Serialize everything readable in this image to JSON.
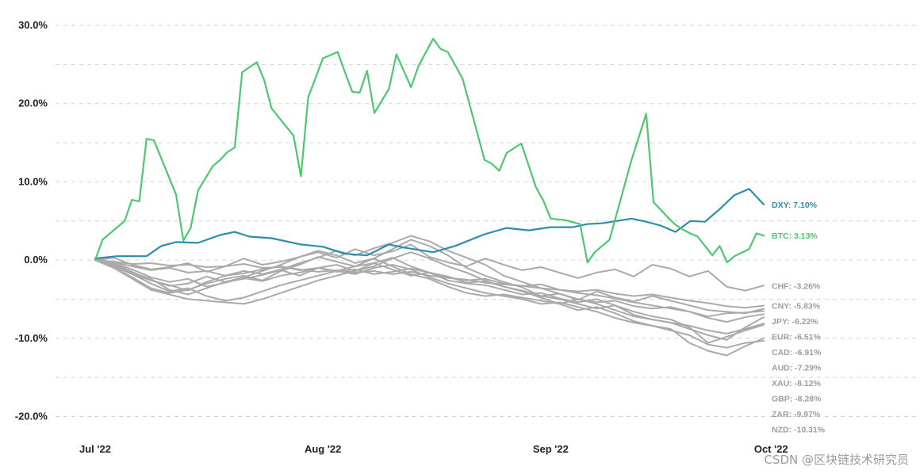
{
  "watermark": "CSDN @区块链技术研究员",
  "colors": {
    "dxy": "#2b8fa8",
    "btc": "#4cc86e",
    "fx": "#aaaaaa",
    "grid": "#d4d4d4"
  },
  "chart_data": {
    "type": "line",
    "title": "",
    "xlabel": "",
    "ylabel": "",
    "ylim": [
      -22,
      30
    ],
    "grid": true,
    "x_start": "2022-07-01",
    "x_end": "2022-09-30",
    "x_ticks": [
      {
        "label": "Jul '22",
        "date": "2022-07-01"
      },
      {
        "label": "Aug '22",
        "date": "2022-08-01"
      },
      {
        "label": "Sep '22",
        "date": "2022-09-01"
      },
      {
        "label": "Oct '22",
        "date": "2022-10-01"
      }
    ],
    "y_ticks": [
      {
        "label": "30.0%",
        "value": 30
      },
      {
        "label": "20.0%",
        "value": 20
      },
      {
        "label": "10.0%",
        "value": 10
      },
      {
        "label": "0.0%",
        "value": 0
      },
      {
        "label": "-10.0%",
        "value": -10
      },
      {
        "label": "-20.0%",
        "value": -20
      }
    ],
    "series": [
      {
        "name": "DXY",
        "end_label": "DXY: 7.10%",
        "color": "#2b8fa8",
        "highlight": true,
        "x": [
          "2022-07-01",
          "2022-07-04",
          "2022-07-08",
          "2022-07-10",
          "2022-07-12",
          "2022-07-15",
          "2022-07-18",
          "2022-07-20",
          "2022-07-22",
          "2022-07-25",
          "2022-07-29",
          "2022-08-01",
          "2022-08-04",
          "2022-08-07",
          "2022-08-10",
          "2022-08-12",
          "2022-08-16",
          "2022-08-19",
          "2022-08-23",
          "2022-08-26",
          "2022-08-29",
          "2022-09-01",
          "2022-09-04",
          "2022-09-06",
          "2022-09-08",
          "2022-09-12",
          "2022-09-14",
          "2022-09-16",
          "2022-09-18",
          "2022-09-20",
          "2022-09-22",
          "2022-09-24",
          "2022-09-26",
          "2022-09-28",
          "2022-09-30"
        ],
        "values": [
          0.2,
          0.5,
          0.5,
          1.8,
          2.3,
          2.2,
          3.2,
          3.6,
          3.0,
          2.8,
          2.0,
          1.7,
          0.8,
          0.6,
          2.0,
          1.6,
          1.0,
          1.8,
          3.3,
          4.1,
          3.8,
          4.2,
          4.2,
          4.6,
          4.7,
          5.3,
          4.9,
          4.4,
          3.6,
          5.0,
          4.9,
          6.5,
          8.3,
          9.1,
          7.1
        ]
      },
      {
        "name": "BTC",
        "end_label": "BTC: 3.13%",
        "color": "#4cc86e",
        "highlight": true,
        "x": [
          "2022-07-01",
          "2022-07-02",
          "2022-07-05",
          "2022-07-06",
          "2022-07-07",
          "2022-07-08",
          "2022-07-09",
          "2022-07-12",
          "2022-07-13",
          "2022-07-14",
          "2022-07-15",
          "2022-07-17",
          "2022-07-18",
          "2022-07-19",
          "2022-07-20",
          "2022-07-21",
          "2022-07-23",
          "2022-07-24",
          "2022-07-25",
          "2022-07-28",
          "2022-07-29",
          "2022-07-30",
          "2022-08-01",
          "2022-08-03",
          "2022-08-04",
          "2022-08-05",
          "2022-08-06",
          "2022-08-07",
          "2022-08-08",
          "2022-08-10",
          "2022-08-11",
          "2022-08-13",
          "2022-08-14",
          "2022-08-16",
          "2022-08-17",
          "2022-08-18",
          "2022-08-20",
          "2022-08-23",
          "2022-08-24",
          "2022-08-25",
          "2022-08-26",
          "2022-08-28",
          "2022-08-30",
          "2022-08-31",
          "2022-09-01",
          "2022-09-03",
          "2022-09-05",
          "2022-09-06",
          "2022-09-07",
          "2022-09-09",
          "2022-09-12",
          "2022-09-14",
          "2022-09-15",
          "2022-09-17",
          "2022-09-18",
          "2022-09-19",
          "2022-09-20",
          "2022-09-21",
          "2022-09-23",
          "2022-09-24",
          "2022-09-25",
          "2022-09-26",
          "2022-09-28",
          "2022-09-29",
          "2022-09-30"
        ],
        "values": [
          0,
          2.6,
          5.0,
          7.7,
          7.5,
          15.5,
          15.3,
          8.4,
          2.5,
          4.1,
          8.9,
          12.0,
          12.8,
          13.8,
          14.4,
          24.0,
          25.3,
          23.0,
          19.4,
          15.9,
          10.7,
          20.8,
          25.8,
          26.6,
          24.0,
          21.5,
          21.4,
          24.2,
          18.8,
          21.9,
          26.3,
          22.1,
          24.8,
          28.3,
          27.0,
          26.6,
          23.2,
          12.8,
          12.3,
          11.4,
          13.7,
          14.9,
          9.3,
          7.6,
          5.3,
          5.1,
          4.6,
          -0.3,
          1.0,
          2.6,
          12.8,
          18.7,
          7.4,
          5.4,
          4.5,
          3.9,
          3.4,
          3.0,
          0.6,
          1.8,
          -0.3,
          0.5,
          1.4,
          3.4,
          3.13
        ]
      },
      {
        "name": "CHF",
        "end_label": "CHF: -3.26%",
        "color": "#aaaaaa",
        "highlight": false,
        "values": [
          0,
          0.3,
          -0.6,
          -1.2,
          -0.9,
          -0.4,
          -1.5,
          -0.8,
          0.2,
          -0.6,
          -0.2,
          0.4,
          1.0,
          0.3,
          1.4,
          0.6,
          1.1,
          2.0,
          0.4,
          -0.3,
          -0.8,
          0.2,
          -0.6,
          -1.3,
          -0.9,
          -1.6,
          -2.3,
          -1.6,
          -1.2,
          -2.1,
          -0.6,
          -1.1,
          -2.1,
          -1.4,
          -3.4,
          -3.9,
          -3.26
        ]
      },
      {
        "name": "CNY",
        "end_label": "CNY: -5.83%",
        "color": "#aaaaaa",
        "highlight": false,
        "values": [
          0,
          -0.2,
          -0.5,
          -0.4,
          -0.7,
          -0.6,
          -0.9,
          -0.8,
          -0.5,
          -1.0,
          -0.9,
          -1.2,
          -1.5,
          -1.3,
          -1.6,
          -1.4,
          -1.8,
          -1.5,
          -2.0,
          -2.3,
          -2.5,
          -2.9,
          -3.1,
          -3.3,
          -3.6,
          -3.8,
          -4.0,
          -3.8,
          -4.3,
          -4.6,
          -4.4,
          -4.8,
          -5.2,
          -5.5,
          -5.9,
          -6.1,
          -5.83
        ]
      },
      {
        "name": "JPY",
        "end_label": "JPY: -6.22%",
        "color": "#aaaaaa",
        "highlight": false,
        "values": [
          0,
          -0.9,
          -1.8,
          -2.6,
          -3.2,
          -3.9,
          -2.8,
          -2.0,
          -1.4,
          -1.8,
          -1.2,
          -0.4,
          0.3,
          1.2,
          0.6,
          1.5,
          2.2,
          3.1,
          2.4,
          1.2,
          0.3,
          -0.6,
          -2.0,
          -2.8,
          -3.6,
          -4.3,
          -5.1,
          -4.0,
          -4.8,
          -5.3,
          -4.6,
          -5.2,
          -5.8,
          -6.4,
          -6.6,
          -6.8,
          -6.22
        ]
      },
      {
        "name": "EUR",
        "end_label": "EUR: -6.51%",
        "color": "#aaaaaa",
        "highlight": false,
        "values": [
          0,
          -0.5,
          -1.5,
          -2.6,
          -3.3,
          -3.0,
          -2.1,
          -2.8,
          -2.4,
          -1.9,
          -1.3,
          -2.0,
          -1.0,
          -0.6,
          -1.4,
          -0.4,
          0.3,
          -0.8,
          -1.6,
          -2.1,
          -2.9,
          -2.7,
          -3.4,
          -3.9,
          -4.6,
          -4.3,
          -5.0,
          -5.4,
          -5.2,
          -5.9,
          -6.2,
          -6.0,
          -6.6,
          -7.2,
          -6.8,
          -6.7,
          -6.51
        ]
      },
      {
        "name": "CAD",
        "end_label": "CAD: -6.91%",
        "color": "#aaaaaa",
        "highlight": false,
        "values": [
          0,
          -0.3,
          -0.8,
          -1.3,
          -1.0,
          -1.6,
          -1.4,
          -2.0,
          -1.7,
          -1.2,
          -0.8,
          -1.3,
          -1.0,
          -1.5,
          -1.2,
          -1.8,
          -1.5,
          -1.1,
          -1.6,
          -2.2,
          -2.6,
          -2.4,
          -3.0,
          -3.3,
          -3.1,
          -3.8,
          -4.2,
          -4.5,
          -4.9,
          -5.4,
          -5.8,
          -6.2,
          -6.6,
          -7.4,
          -7.9,
          -7.3,
          -6.91
        ]
      },
      {
        "name": "AUD",
        "end_label": "AUD: -7.29%",
        "color": "#aaaaaa",
        "highlight": false,
        "values": [
          0,
          -1.0,
          -2.2,
          -3.6,
          -4.2,
          -3.8,
          -3.0,
          -2.4,
          -2.0,
          -2.6,
          -1.4,
          -0.6,
          0.4,
          -0.2,
          -0.8,
          0.2,
          1.4,
          2.6,
          1.8,
          0.6,
          -1.0,
          -2.0,
          -2.8,
          -3.5,
          -4.6,
          -5.0,
          -5.6,
          -6.2,
          -5.8,
          -7.0,
          -7.6,
          -8.0,
          -8.8,
          -9.6,
          -10.2,
          -8.6,
          -7.29
        ]
      },
      {
        "name": "XAU",
        "end_label": "XAU: -8.12%",
        "color": "#aaaaaa",
        "highlight": false,
        "values": [
          0,
          -0.8,
          -1.6,
          -2.4,
          -3.8,
          -4.4,
          -3.6,
          -2.8,
          -2.2,
          -1.4,
          -0.6,
          0.4,
          1.2,
          0.6,
          -0.4,
          0.2,
          -0.8,
          -1.8,
          -2.4,
          -3.4,
          -4.2,
          -4.6,
          -4.4,
          -4.8,
          -5.2,
          -5.6,
          -5.0,
          -5.6,
          -6.4,
          -7.2,
          -7.6,
          -8.0,
          -8.4,
          -9.0,
          -9.4,
          -8.8,
          -8.12
        ]
      },
      {
        "name": "GBP",
        "end_label": "GBP: -8.28%",
        "color": "#aaaaaa",
        "highlight": false,
        "values": [
          0,
          -0.4,
          -1.2,
          -2.2,
          -2.8,
          -2.4,
          -3.4,
          -2.9,
          -2.3,
          -2.7,
          -2.0,
          -1.6,
          -1.0,
          -1.4,
          -0.8,
          -0.4,
          -1.2,
          -2.0,
          -1.6,
          -2.6,
          -3.0,
          -3.2,
          -3.8,
          -4.4,
          -4.2,
          -4.9,
          -5.4,
          -5.0,
          -5.8,
          -6.6,
          -7.2,
          -7.6,
          -8.6,
          -10.6,
          -9.8,
          -9.0,
          -8.28
        ]
      },
      {
        "name": "ZAR",
        "end_label": "ZAR: -9.97%",
        "color": "#aaaaaa",
        "highlight": false,
        "values": [
          0,
          -0.6,
          -1.8,
          -3.0,
          -4.0,
          -3.6,
          -4.6,
          -5.2,
          -4.8,
          -4.0,
          -3.2,
          -2.6,
          -2.0,
          -1.4,
          -1.8,
          -1.0,
          -0.6,
          -1.2,
          -2.2,
          -3.0,
          -3.6,
          -4.2,
          -4.6,
          -5.0,
          -5.6,
          -5.4,
          -6.0,
          -6.6,
          -7.4,
          -8.0,
          -8.4,
          -8.8,
          -10.6,
          -11.6,
          -12.2,
          -11.0,
          -9.97
        ]
      },
      {
        "name": "NZD",
        "end_label": "NZD: -10.31%",
        "color": "#aaaaaa",
        "highlight": false,
        "values": [
          0,
          -1.0,
          -2.4,
          -3.8,
          -4.4,
          -5.0,
          -5.2,
          -5.4,
          -5.6,
          -5.0,
          -4.2,
          -3.4,
          -2.6,
          -2.0,
          -1.4,
          -0.8,
          0.2,
          1.0,
          0.2,
          -0.8,
          -1.6,
          -2.6,
          -3.4,
          -4.0,
          -4.8,
          -5.6,
          -6.4,
          -6.0,
          -6.8,
          -7.8,
          -8.4,
          -9.0,
          -9.6,
          -10.8,
          -11.2,
          -10.6,
          -10.31
        ]
      }
    ]
  }
}
